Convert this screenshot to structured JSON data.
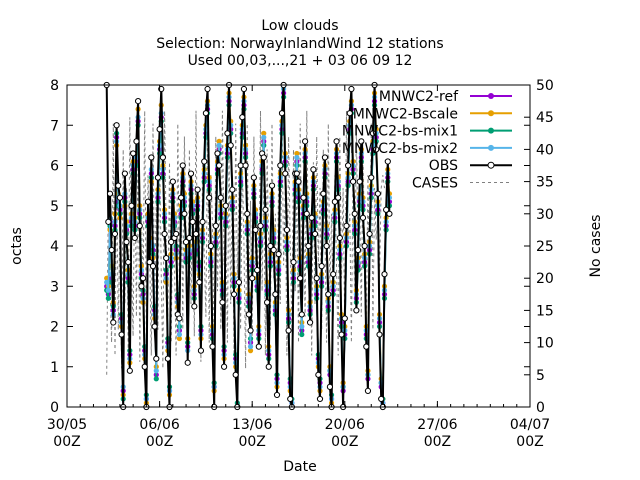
{
  "chart_data": {
    "type": "line",
    "title": [
      "Low clouds",
      "Selection: NorwayInlandWind     12 stations",
      "Used 00,03,...,21 + 03 06 09 12"
    ],
    "xlabel": "Date",
    "ylabel": "octas",
    "y2label": "No cases",
    "xlim": [
      "2023-05-30",
      "2023-07-04"
    ],
    "ylim": [
      0,
      8
    ],
    "y2lim": [
      0,
      50
    ],
    "x_ticks": [
      {
        "date": "2023-05-30",
        "line1": "30/05",
        "line2": "00Z"
      },
      {
        "date": "2023-06-06",
        "line1": "06/06",
        "line2": "00Z"
      },
      {
        "date": "2023-06-13",
        "line1": "13/06",
        "line2": "00Z"
      },
      {
        "date": "2023-06-20",
        "line1": "20/06",
        "line2": "00Z"
      },
      {
        "date": "2023-06-27",
        "line1": "27/06",
        "line2": "00Z"
      },
      {
        "date": "2023-07-04",
        "line1": "04/07",
        "line2": "00Z"
      }
    ],
    "y_ticks": [
      "0",
      "1",
      "2",
      "3",
      "4",
      "5",
      "6",
      "7",
      "8"
    ],
    "y2_ticks": [
      "0",
      "5",
      "10",
      "15",
      "20",
      "25",
      "30",
      "35",
      "40",
      "45",
      "50"
    ],
    "grid": false,
    "legend_position": "top-right",
    "time_start": "2023-06-02T00:00",
    "time_step_hours": 3,
    "series": [
      {
        "name": "MNWC2-ref",
        "color": "#9400d3",
        "marker": "circle",
        "axis": "y",
        "values": [
          3.0,
          2.8,
          4.6,
          3.2,
          2.4,
          4.5,
          6.7,
          5.1,
          4.9,
          2.2,
          0.4,
          5.2,
          4.4,
          3.2,
          1.3,
          4.6,
          5.9,
          4.5,
          6.1,
          7.1,
          4.8,
          3.3,
          2.8,
          1.4,
          0.2,
          4.6,
          4.0,
          5.8,
          3.9,
          2.4,
          0.8,
          5.2,
          6.4,
          7.2,
          5.8,
          4.7,
          3.3,
          1.6,
          0.4,
          3.6,
          5.2,
          4.6,
          3.9,
          2.7,
          1.9,
          4.8,
          5.6,
          5.1,
          3.7,
          1.5,
          3.8,
          5.4,
          4.9,
          2.8,
          3.9,
          5.0,
          3.5,
          1.9,
          4.2,
          5.7,
          6.8,
          7.4,
          5.5,
          3.6,
          1.8,
          0.5,
          4.1,
          5.9,
          6.4,
          4.8,
          2.9,
          1.4,
          4.6,
          6.3,
          7.6,
          6.9,
          5.0,
          3.1,
          1.2,
          0.0,
          2.7,
          5.6,
          6.8,
          7.5,
          6.3,
          4.4,
          2.6,
          1.6,
          3.5,
          5.3,
          4.7,
          3.0,
          1.8,
          4.1,
          5.9,
          6.6,
          4.5,
          2.9,
          1.3,
          3.6,
          5.1,
          4.2,
          2.4,
          0.7,
          3.4,
          5.6,
          6.9,
          7.8,
          6.1,
          4.0,
          2.2,
          0.6,
          0.1,
          3.2,
          5.4,
          6.1,
          5.2,
          3.5,
          1.9,
          4.8,
          6.2,
          5.1,
          3.6,
          2.4,
          4.3,
          5.5,
          4.6,
          2.8,
          1.2,
          0.6,
          3.1,
          4.9,
          5.8,
          4.3,
          2.5,
          0.8,
          0.2,
          2.9,
          4.7,
          6.2,
          5.5,
          3.8,
          2.1,
          0.4,
          1.8,
          4.1,
          5.6,
          6.9,
          7.4,
          5.9,
          4.4,
          2.7,
          3.5,
          5.1,
          6.2,
          5.0,
          3.6,
          1.8,
          0.7,
          3.9,
          5.3,
          6.4,
          7.6,
          6.7,
          4.9,
          2.1,
          0.5,
          0.1,
          2.8,
          4.5,
          5.7,
          5.1
        ]
      },
      {
        "name": "MNWC2-Bscale",
        "color": "#e69f00",
        "marker": "circle",
        "axis": "y",
        "values": [
          3.2,
          3.0,
          4.4,
          3.5,
          2.6,
          4.8,
          6.5,
          5.3,
          4.7,
          2.0,
          0.3,
          5.0,
          4.6,
          3.4,
          1.1,
          4.8,
          6.1,
          4.7,
          6.3,
          7.4,
          5.0,
          3.5,
          2.6,
          1.2,
          0.1,
          4.8,
          4.2,
          5.6,
          3.7,
          2.2,
          1.0,
          5.4,
          6.6,
          7.5,
          6.0,
          4.9,
          3.1,
          1.4,
          0.3,
          3.8,
          5.4,
          4.8,
          3.7,
          2.5,
          1.7,
          5.0,
          5.8,
          5.3,
          3.9,
          1.7,
          4.0,
          5.6,
          5.1,
          3.0,
          4.1,
          5.2,
          3.3,
          1.7,
          4.4,
          5.9,
          7.0,
          7.6,
          5.7,
          3.8,
          2.0,
          0.4,
          4.3,
          6.1,
          6.6,
          5.0,
          3.1,
          1.2,
          4.8,
          6.5,
          7.8,
          7.1,
          5.2,
          3.3,
          1.0,
          0.0,
          2.9,
          5.8,
          7.0,
          7.7,
          6.5,
          4.6,
          2.8,
          1.4,
          3.7,
          5.5,
          4.9,
          3.2,
          2.0,
          4.3,
          6.1,
          6.8,
          4.7,
          3.1,
          1.5,
          3.8,
          5.3,
          4.4,
          2.6,
          0.5,
          3.6,
          5.8,
          7.1,
          8.0,
          6.3,
          4.2,
          2.4,
          0.4,
          0.0,
          3.4,
          5.6,
          6.3,
          5.4,
          3.7,
          2.1,
          5.0,
          6.4,
          5.3,
          3.8,
          2.6,
          4.5,
          5.7,
          4.8,
          3.0,
          1.0,
          0.4,
          3.3,
          5.1,
          6.0,
          4.5,
          2.7,
          1.0,
          0.1,
          3.1,
          4.9,
          6.4,
          5.7,
          4.0,
          2.3,
          0.6,
          2.0,
          4.3,
          5.8,
          7.1,
          7.6,
          6.1,
          4.6,
          2.9,
          3.7,
          5.3,
          6.4,
          5.2,
          3.8,
          2.0,
          0.9,
          4.1,
          5.5,
          6.6,
          7.8,
          6.9,
          5.1,
          2.3,
          0.7,
          0.2,
          3.0,
          4.7,
          5.9,
          5.3
        ]
      },
      {
        "name": "MNWC2-bs-mix1",
        "color": "#009e73",
        "marker": "circle",
        "axis": "y",
        "values": [
          2.9,
          2.7,
          4.5,
          3.1,
          2.5,
          4.4,
          6.8,
          5.0,
          4.8,
          2.3,
          0.2,
          5.1,
          4.3,
          3.1,
          1.4,
          4.5,
          5.8,
          4.4,
          6.0,
          7.0,
          4.7,
          3.2,
          2.9,
          1.5,
          0.3,
          4.5,
          3.9,
          5.7,
          3.8,
          2.5,
          0.7,
          5.1,
          6.3,
          7.1,
          5.7,
          4.6,
          3.4,
          1.7,
          0.5,
          3.5,
          5.1,
          4.5,
          4.0,
          2.8,
          2.0,
          4.7,
          5.5,
          5.0,
          3.6,
          1.6,
          3.7,
          5.3,
          4.8,
          2.7,
          3.8,
          4.9,
          3.6,
          2.0,
          4.1,
          5.6,
          6.7,
          7.3,
          5.4,
          3.5,
          1.7,
          0.6,
          4.0,
          5.8,
          6.3,
          4.7,
          2.8,
          1.5,
          4.5,
          6.2,
          7.5,
          6.8,
          4.9,
          3.0,
          1.3,
          0.1,
          2.6,
          5.5,
          6.7,
          7.4,
          6.2,
          4.3,
          2.5,
          1.7,
          3.4,
          5.2,
          4.6,
          2.9,
          1.7,
          4.0,
          5.8,
          6.5,
          4.4,
          2.8,
          1.2,
          3.5,
          5.0,
          4.1,
          2.3,
          0.8,
          3.3,
          5.5,
          6.8,
          7.7,
          6.0,
          3.9,
          2.1,
          0.7,
          0.2,
          3.1,
          5.3,
          6.0,
          5.1,
          3.4,
          1.8,
          4.7,
          6.1,
          5.0,
          3.5,
          2.3,
          4.2,
          5.4,
          4.5,
          2.7,
          1.3,
          0.7,
          3.0,
          4.8,
          5.7,
          4.2,
          2.4,
          0.9,
          0.3,
          2.8,
          4.6,
          6.1,
          5.4,
          3.7,
          2.0,
          0.5,
          1.7,
          4.0,
          5.5,
          6.8,
          7.3,
          5.8,
          4.3,
          2.6,
          3.4,
          5.0,
          6.1,
          4.9,
          3.5,
          1.7,
          0.8,
          3.8,
          5.2,
          6.3,
          7.5,
          6.6,
          4.8,
          2.0,
          0.6,
          0.2,
          2.7,
          4.4,
          5.6,
          5.0
        ]
      },
      {
        "name": "MNWC2-bs-mix2",
        "color": "#56b4e9",
        "marker": "circle",
        "axis": "y",
        "values": [
          3.1,
          2.9,
          4.7,
          3.3,
          2.3,
          4.6,
          6.6,
          5.2,
          5.0,
          2.1,
          0.5,
          5.3,
          4.5,
          3.3,
          1.2,
          4.7,
          6.0,
          4.6,
          6.2,
          7.2,
          4.9,
          3.4,
          2.7,
          1.3,
          0.2,
          4.7,
          4.1,
          5.9,
          4.0,
          2.3,
          0.9,
          5.3,
          6.5,
          7.3,
          5.9,
          4.8,
          3.2,
          1.5,
          0.4,
          3.7,
          5.3,
          4.7,
          3.8,
          2.6,
          1.8,
          4.9,
          5.7,
          5.2,
          3.8,
          1.4,
          3.9,
          5.5,
          5.0,
          2.9,
          4.0,
          5.1,
          3.4,
          1.8,
          4.3,
          5.8,
          6.9,
          7.5,
          5.6,
          3.7,
          1.9,
          0.5,
          4.2,
          6.0,
          6.5,
          4.9,
          3.0,
          1.3,
          4.7,
          6.4,
          7.7,
          7.0,
          5.1,
          3.2,
          1.1,
          0.0,
          2.8,
          5.7,
          6.9,
          7.6,
          6.4,
          4.5,
          2.7,
          1.5,
          3.6,
          5.4,
          4.8,
          3.1,
          1.9,
          4.2,
          6.0,
          6.7,
          4.6,
          3.0,
          1.4,
          3.7,
          5.2,
          4.3,
          2.5,
          0.6,
          3.5,
          5.7,
          7.0,
          7.9,
          6.2,
          4.1,
          2.3,
          0.5,
          0.1,
          3.3,
          5.5,
          6.2,
          5.3,
          3.6,
          2.0,
          4.9,
          6.3,
          5.2,
          3.7,
          2.5,
          4.4,
          5.6,
          4.7,
          2.9,
          1.1,
          0.5,
          3.2,
          5.0,
          5.9,
          4.4,
          2.6,
          0.9,
          0.2,
          3.0,
          4.8,
          6.3,
          5.6,
          3.9,
          2.2,
          0.5,
          1.9,
          4.2,
          5.7,
          7.0,
          7.5,
          6.0,
          4.5,
          2.8,
          3.6,
          5.2,
          6.3,
          5.1,
          3.7,
          1.9,
          0.8,
          4.0,
          5.4,
          6.5,
          7.7,
          6.8,
          5.0,
          2.2,
          0.6,
          0.1,
          2.9,
          4.6,
          5.8,
          5.2
        ]
      },
      {
        "name": "OBS",
        "color": "#000000",
        "marker": "circle-open",
        "axis": "y",
        "values": [
          8.0,
          4.6,
          5.3,
          3.9,
          2.1,
          4.3,
          7.0,
          5.5,
          5.2,
          1.8,
          0.0,
          5.8,
          4.1,
          3.6,
          0.9,
          5.0,
          6.3,
          4.2,
          6.6,
          7.6,
          4.5,
          3.0,
          3.2,
          1.0,
          0.0,
          5.1,
          3.6,
          6.2,
          3.5,
          2.0,
          1.2,
          5.7,
          6.9,
          7.9,
          6.2,
          4.3,
          3.7,
          1.2,
          0.0,
          4.1,
          5.6,
          4.2,
          4.3,
          2.3,
          2.2,
          5.2,
          6.0,
          4.8,
          4.1,
          1.1,
          4.2,
          5.8,
          4.6,
          2.5,
          4.3,
          5.4,
          3.1,
          1.4,
          4.6,
          6.1,
          7.3,
          7.9,
          5.2,
          4.0,
          1.5,
          0.0,
          4.5,
          6.3,
          6.0,
          5.2,
          2.6,
          1.0,
          5.0,
          6.8,
          8.0,
          6.5,
          5.4,
          2.8,
          0.8,
          0.0,
          3.1,
          6.0,
          7.2,
          7.9,
          6.0,
          4.8,
          2.3,
          1.9,
          3.2,
          5.7,
          4.4,
          3.4,
          1.5,
          4.5,
          6.3,
          6.2,
          4.9,
          2.6,
          1.0,
          4.0,
          5.5,
          3.9,
          2.8,
          0.3,
          3.8,
          6.0,
          7.3,
          8.0,
          5.8,
          4.4,
          1.9,
          0.2,
          0.0,
          3.6,
          5.8,
          5.8,
          5.6,
          3.2,
          2.3,
          5.2,
          6.6,
          4.8,
          4.0,
          2.1,
          4.7,
          5.9,
          4.3,
          3.2,
          0.8,
          0.2,
          3.5,
          5.3,
          6.2,
          4.0,
          2.8,
          0.5,
          0.0,
          3.3,
          5.1,
          6.6,
          5.2,
          4.2,
          1.8,
          0.0,
          2.2,
          4.5,
          6.0,
          7.3,
          7.9,
          5.6,
          4.8,
          2.4,
          3.9,
          5.6,
          6.6,
          4.7,
          4.0,
          1.5,
          0.4,
          4.3,
          5.7,
          6.8,
          8.0,
          6.4,
          5.3,
          1.8,
          0.2,
          0.0,
          3.3,
          4.9,
          6.1,
          4.8
        ]
      },
      {
        "name": "CASES",
        "color": "#808080",
        "marker": "none",
        "dash": true,
        "axis": "y2",
        "values": [
          5,
          32,
          20,
          10,
          44,
          8,
          36,
          12,
          28,
          6,
          40,
          16,
          34,
          9,
          45,
          22,
          11,
          38,
          14,
          42,
          7,
          30,
          18,
          46,
          10,
          36,
          24,
          8,
          44,
          15,
          33,
          12,
          40,
          20,
          6,
          46,
          26,
          14,
          38,
          10,
          32,
          22,
          8,
          44,
          18,
          36,
          12,
          42,
          26,
          9,
          40,
          16,
          34,
          11,
          46,
          20,
          30,
          7,
          38,
          24,
          14,
          44,
          10,
          36,
          28,
          8,
          42,
          18,
          32,
          12,
          46,
          22,
          30,
          10,
          40,
          16,
          36,
          8,
          44,
          20,
          34,
          12,
          38,
          26,
          6,
          44,
          16,
          32,
          10,
          42,
          22,
          30,
          14,
          46,
          18,
          36,
          8,
          40,
          24,
          12,
          44,
          20,
          30,
          10,
          38,
          16,
          46,
          22,
          34,
          8,
          42,
          26,
          12,
          40,
          18,
          36,
          10,
          44,
          20,
          32,
          14,
          46,
          24,
          30,
          8,
          38,
          16,
          42,
          22,
          34,
          12,
          40,
          26,
          10,
          44,
          18,
          30,
          14,
          36,
          22,
          8,
          42,
          20,
          34,
          12,
          46,
          26,
          30,
          10,
          38,
          16,
          44,
          22,
          32,
          14,
          40,
          24,
          10,
          36,
          18,
          44,
          12,
          34,
          26,
          30,
          20,
          34,
          36,
          34,
          35
        ]
      }
    ]
  }
}
